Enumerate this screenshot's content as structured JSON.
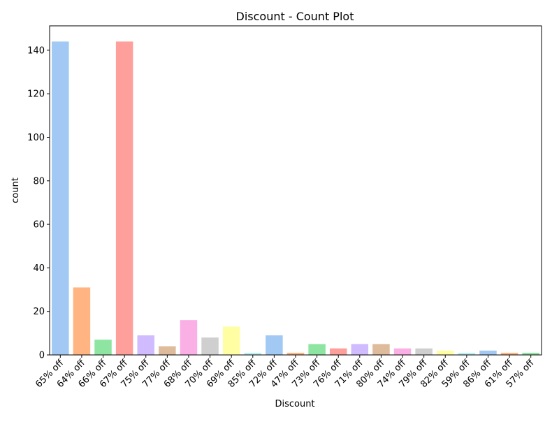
{
  "chart_data": {
    "type": "bar",
    "title": "Discount - Count Plot",
    "xlabel": "Discount",
    "ylabel": "count",
    "ylim": [
      0,
      151.2
    ],
    "yticks": [
      0,
      20,
      40,
      60,
      80,
      100,
      120,
      140
    ],
    "grid": false,
    "legend": "none",
    "categories": [
      "65% off",
      "64% off",
      "66% off",
      "67% off",
      "75% off",
      "77% off",
      "68% off",
      "70% off",
      "69% off",
      "85% off",
      "72% off",
      "47% off",
      "73% off",
      "76% off",
      "71% off",
      "80% off",
      "74% off",
      "79% off",
      "82% off",
      "59% off",
      "86% off",
      "61% off",
      "57% off"
    ],
    "values": [
      144,
      31,
      7,
      144,
      9,
      4,
      16,
      8,
      13,
      1,
      9,
      1,
      5,
      3,
      5,
      5,
      3,
      3,
      2,
      1,
      2,
      1,
      1
    ],
    "colors": [
      "#a1c9f4",
      "#ffb482",
      "#8de5a1",
      "#ff9f9b",
      "#d0bbff",
      "#debb9b",
      "#fab0e4",
      "#cfcfcf",
      "#fffea3",
      "#b9f2f0"
    ]
  }
}
